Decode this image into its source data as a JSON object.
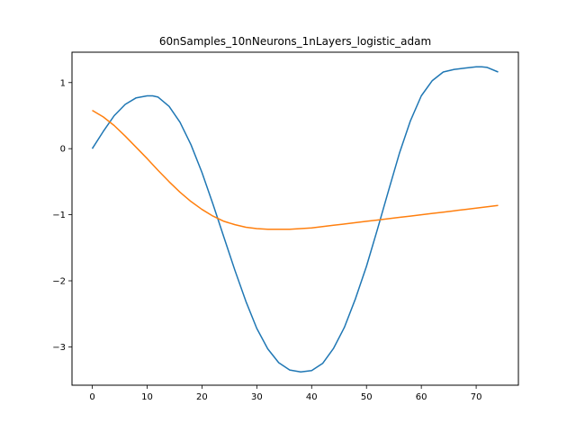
{
  "chart_data": {
    "type": "line",
    "title": "60nSamples_10nNeurons_1nLayers_logistic_adam",
    "xlabel": "",
    "ylabel": "",
    "xlim": [
      -3.7,
      77.7
    ],
    "ylim": [
      -3.58,
      1.46
    ],
    "xticks": [
      0,
      10,
      20,
      30,
      40,
      50,
      60,
      70
    ],
    "yticks": [
      -3,
      -2,
      -1,
      0,
      1
    ],
    "ytick_labels": [
      "−3",
      "−2",
      "−1",
      "0",
      "1"
    ],
    "grid": false,
    "legend": "none",
    "series": [
      {
        "color": "#1f77b4",
        "x": [
          0,
          2,
          4,
          6,
          8,
          10,
          11,
          12,
          14,
          16,
          18,
          20,
          22,
          24,
          26,
          28,
          30,
          32,
          34,
          36,
          38,
          40,
          42,
          44,
          46,
          48,
          50,
          52,
          54,
          56,
          58,
          60,
          62,
          64,
          66,
          68,
          70,
          71,
          72,
          74
        ],
        "y": [
          0.0,
          0.26,
          0.5,
          0.67,
          0.77,
          0.8,
          0.8,
          0.78,
          0.64,
          0.4,
          0.06,
          -0.36,
          -0.84,
          -1.34,
          -1.84,
          -2.31,
          -2.72,
          -3.03,
          -3.24,
          -3.35,
          -3.38,
          -3.36,
          -3.25,
          -3.02,
          -2.7,
          -2.27,
          -1.78,
          -1.22,
          -0.64,
          -0.07,
          0.42,
          0.8,
          1.03,
          1.16,
          1.2,
          1.22,
          1.24,
          1.24,
          1.23,
          1.16
        ]
      },
      {
        "color": "#ff7f0e",
        "x": [
          0,
          2,
          4,
          6,
          8,
          10,
          12,
          14,
          16,
          18,
          20,
          22,
          24,
          26,
          28,
          30,
          32,
          34,
          36,
          38,
          40,
          42,
          44,
          46,
          48,
          50,
          52,
          54,
          56,
          58,
          60,
          62,
          64,
          66,
          68,
          70,
          72,
          74
        ],
        "y": [
          0.58,
          0.48,
          0.35,
          0.19,
          0.02,
          -0.15,
          -0.33,
          -0.5,
          -0.66,
          -0.8,
          -0.92,
          -1.02,
          -1.1,
          -1.15,
          -1.19,
          -1.21,
          -1.22,
          -1.22,
          -1.22,
          -1.21,
          -1.2,
          -1.18,
          -1.16,
          -1.14,
          -1.12,
          -1.1,
          -1.08,
          -1.06,
          -1.04,
          -1.02,
          -1.0,
          -0.98,
          -0.96,
          -0.94,
          -0.92,
          -0.9,
          -0.88,
          -0.86
        ]
      }
    ]
  }
}
